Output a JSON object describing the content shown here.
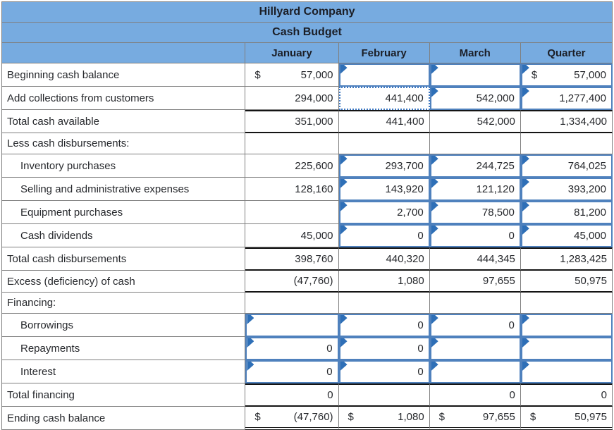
{
  "title": "Hillyard Company",
  "subtitle": "Cash Budget",
  "columns": [
    "January",
    "February",
    "March",
    "Quarter"
  ],
  "colors": {
    "header_bg": "#77abe0",
    "header_text": "#1b1e26",
    "grid_line": "#7f7f7f",
    "input_border": "#4f81bd",
    "selected_border": "#3b76c1",
    "flag": "#2e6fb7",
    "total_border": "#141414"
  },
  "rows": [
    {
      "label": "Beginning cash balance",
      "cells": [
        {
          "t": "plain",
          "d": "$",
          "v": "57,000"
        },
        {
          "t": "input",
          "v": ""
        },
        {
          "t": "input",
          "v": ""
        },
        {
          "t": "input",
          "d": "$",
          "v": "57,000"
        }
      ]
    },
    {
      "label": "Add collections from customers",
      "cells": [
        {
          "t": "plain",
          "v": "294,000"
        },
        {
          "t": "selected",
          "v": "441,400"
        },
        {
          "t": "input",
          "v": "542,000"
        },
        {
          "t": "input",
          "v": "1,277,400"
        }
      ]
    },
    {
      "label": "Total cash available",
      "style": "total",
      "cells": [
        {
          "t": "plain",
          "v": "351,000"
        },
        {
          "t": "plain",
          "v": "441,400"
        },
        {
          "t": "plain",
          "v": "542,000"
        },
        {
          "t": "plain",
          "v": "1,334,400"
        }
      ]
    },
    {
      "label": "Less cash disbursements:",
      "cells": [
        {
          "t": "plain",
          "v": ""
        },
        {
          "t": "plain",
          "v": ""
        },
        {
          "t": "plain",
          "v": ""
        },
        {
          "t": "plain",
          "v": ""
        }
      ]
    },
    {
      "label": "Inventory purchases",
      "indent": true,
      "cells": [
        {
          "t": "plain",
          "v": "225,600"
        },
        {
          "t": "input",
          "v": "293,700"
        },
        {
          "t": "input",
          "v": "244,725"
        },
        {
          "t": "input",
          "v": "764,025"
        }
      ]
    },
    {
      "label": "Selling and administrative expenses",
      "indent": true,
      "cells": [
        {
          "t": "plain",
          "v": "128,160"
        },
        {
          "t": "input",
          "v": "143,920"
        },
        {
          "t": "input",
          "v": "121,120"
        },
        {
          "t": "input",
          "v": "393,200"
        }
      ]
    },
    {
      "label": "Equipment purchases",
      "indent": true,
      "cells": [
        {
          "t": "plain",
          "v": ""
        },
        {
          "t": "input",
          "v": "2,700"
        },
        {
          "t": "input",
          "v": "78,500"
        },
        {
          "t": "input",
          "v": "81,200"
        }
      ]
    },
    {
      "label": "Cash dividends",
      "indent": true,
      "cells": [
        {
          "t": "plain",
          "v": "45,000"
        },
        {
          "t": "input",
          "v": "0"
        },
        {
          "t": "input",
          "v": "0"
        },
        {
          "t": "input",
          "v": "45,000"
        }
      ]
    },
    {
      "label": "Total cash disbursements",
      "style": "total",
      "cells": [
        {
          "t": "plain",
          "v": "398,760"
        },
        {
          "t": "plain",
          "v": "440,320"
        },
        {
          "t": "plain",
          "v": "444,345"
        },
        {
          "t": "plain",
          "v": "1,283,425"
        }
      ]
    },
    {
      "label": "Excess (deficiency) of cash",
      "style": "total",
      "cells": [
        {
          "t": "plain",
          "v": "(47,760)"
        },
        {
          "t": "plain",
          "v": "1,080"
        },
        {
          "t": "plain",
          "v": "97,655"
        },
        {
          "t": "plain",
          "v": "50,975"
        }
      ]
    },
    {
      "label": "Financing:",
      "cells": [
        {
          "t": "plain",
          "v": ""
        },
        {
          "t": "plain",
          "v": ""
        },
        {
          "t": "plain",
          "v": ""
        },
        {
          "t": "plain",
          "v": ""
        }
      ]
    },
    {
      "label": "Borrowings",
      "indent": true,
      "cells": [
        {
          "t": "input",
          "v": ""
        },
        {
          "t": "input",
          "v": "0"
        },
        {
          "t": "input",
          "v": "0"
        },
        {
          "t": "input",
          "v": ""
        }
      ]
    },
    {
      "label": "Repayments",
      "indent": true,
      "cells": [
        {
          "t": "input",
          "v": "0"
        },
        {
          "t": "input",
          "v": "0"
        },
        {
          "t": "input",
          "v": ""
        },
        {
          "t": "input",
          "v": ""
        }
      ]
    },
    {
      "label": "Interest",
      "indent": true,
      "cells": [
        {
          "t": "input",
          "v": "0"
        },
        {
          "t": "input",
          "v": "0"
        },
        {
          "t": "input",
          "v": ""
        },
        {
          "t": "input",
          "v": ""
        }
      ]
    },
    {
      "label": "Total financing",
      "style": "total",
      "cells": [
        {
          "t": "plain",
          "v": "0"
        },
        {
          "t": "plain",
          "v": ""
        },
        {
          "t": "plain",
          "v": "0"
        },
        {
          "t": "plain",
          "v": "0"
        }
      ]
    },
    {
      "label": "Ending cash balance",
      "style": "ending",
      "cells": [
        {
          "t": "plain",
          "d": "$",
          "v": "(47,760)"
        },
        {
          "t": "plain",
          "d": "$",
          "v": "1,080"
        },
        {
          "t": "plain",
          "d": "$",
          "v": "97,655"
        },
        {
          "t": "plain",
          "d": "$",
          "v": "50,975"
        }
      ]
    }
  ]
}
